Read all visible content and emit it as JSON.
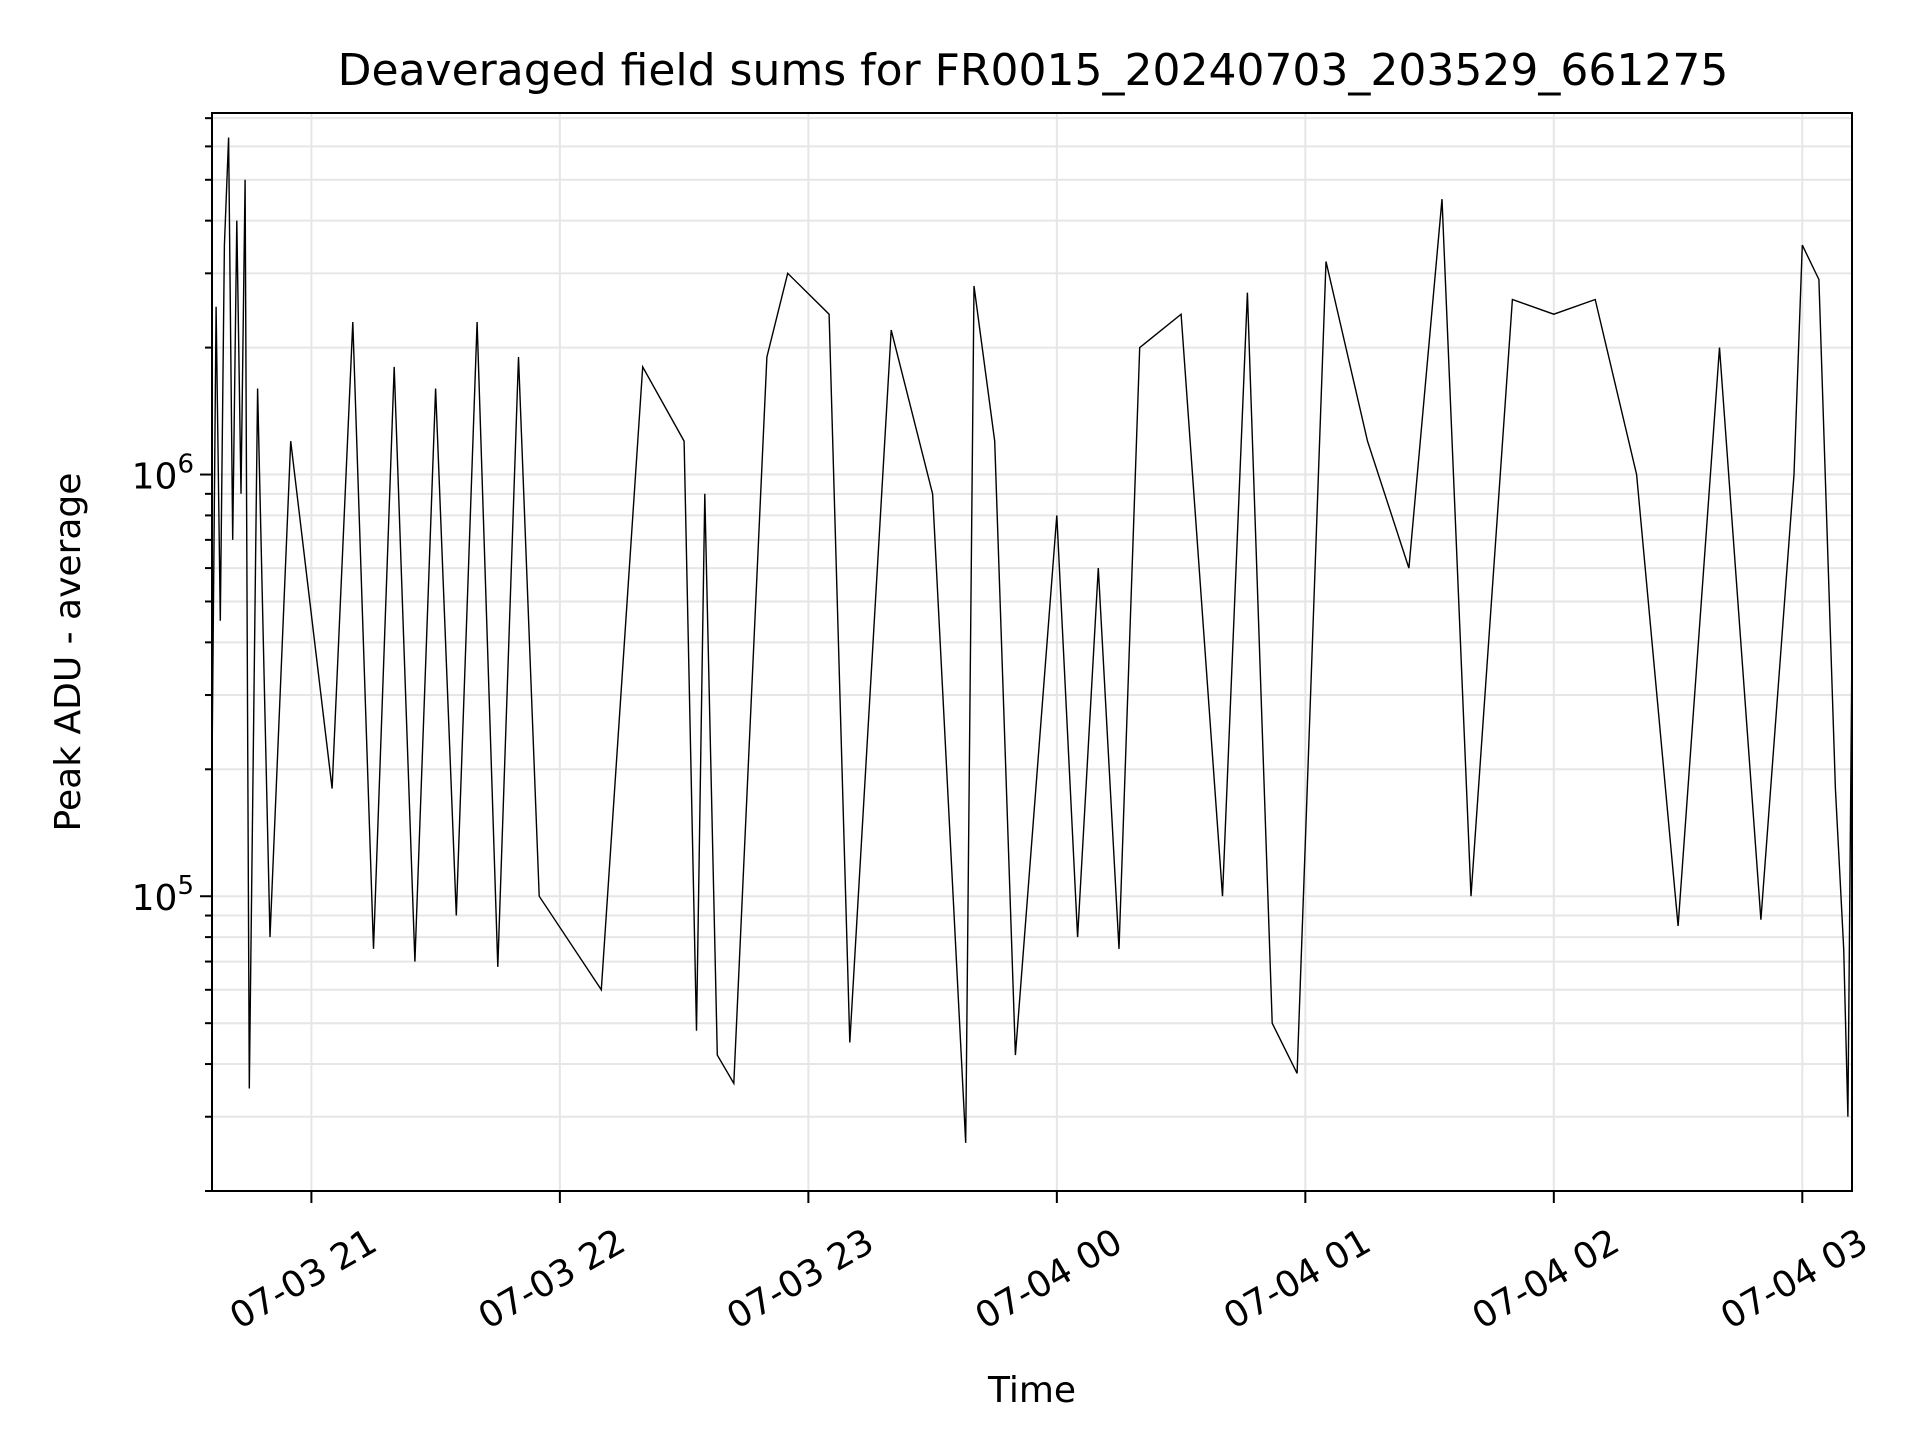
{
  "chart_data": {
    "type": "line",
    "title": "Deaveraged field sums for FR0015_20240703_203529_661275",
    "xlabel": "Time",
    "ylabel": "Peak ADU - average",
    "yscale": "log",
    "ylim": [
      20000,
      7200000
    ],
    "xlim": [
      "2024-07-03 20:36",
      "2024-07-04 03:12"
    ],
    "grid": true,
    "line_color": "#000000",
    "grid_color": "#e6e6e6",
    "x_ticks": [
      {
        "value": "2024-07-03 21:00",
        "label": "07-03 21"
      },
      {
        "value": "2024-07-03 22:00",
        "label": "07-03 22"
      },
      {
        "value": "2024-07-03 23:00",
        "label": "07-03 23"
      },
      {
        "value": "2024-07-04 00:00",
        "label": "07-04 00"
      },
      {
        "value": "2024-07-04 01:00",
        "label": "07-04 01"
      },
      {
        "value": "2024-07-04 02:00",
        "label": "07-04 02"
      },
      {
        "value": "2024-07-04 03:00",
        "label": "07-04 03"
      }
    ],
    "y_ticks": [
      {
        "value": 100000,
        "base": "10",
        "exp": "5"
      },
      {
        "value": 1000000,
        "base": "10",
        "exp": "6"
      }
    ],
    "series": [
      {
        "x": [
          "2024-07-03 20:36",
          "2024-07-03 20:37",
          "2024-07-03 20:38",
          "2024-07-03 20:39",
          "2024-07-03 20:40",
          "2024-07-03 20:41",
          "2024-07-03 20:42",
          "2024-07-03 20:43",
          "2024-07-03 20:44",
          "2024-07-03 20:45",
          "2024-07-03 20:47",
          "2024-07-03 20:50",
          "2024-07-03 20:55",
          "2024-07-03 21:05",
          "2024-07-03 21:10",
          "2024-07-03 21:15",
          "2024-07-03 21:20",
          "2024-07-03 21:25",
          "2024-07-03 21:30",
          "2024-07-03 21:35",
          "2024-07-03 21:40",
          "2024-07-03 21:45",
          "2024-07-03 21:50",
          "2024-07-03 21:55",
          "2024-07-03 22:10",
          "2024-07-03 22:20",
          "2024-07-03 22:30",
          "2024-07-03 22:33",
          "2024-07-03 22:35",
          "2024-07-03 22:38",
          "2024-07-03 22:42",
          "2024-07-03 22:50",
          "2024-07-03 22:55",
          "2024-07-03 23:05",
          "2024-07-03 23:10",
          "2024-07-03 23:20",
          "2024-07-03 23:30",
          "2024-07-03 23:38",
          "2024-07-03 23:40",
          "2024-07-03 23:45",
          "2024-07-03 23:50",
          "2024-07-04 00:00",
          "2024-07-04 00:05",
          "2024-07-04 00:10",
          "2024-07-04 00:15",
          "2024-07-04 00:20",
          "2024-07-04 00:30",
          "2024-07-04 00:40",
          "2024-07-04 00:46",
          "2024-07-04 00:52",
          "2024-07-04 00:58",
          "2024-07-04 01:05",
          "2024-07-04 01:15",
          "2024-07-04 01:25",
          "2024-07-04 01:33",
          "2024-07-04 01:40",
          "2024-07-04 01:50",
          "2024-07-04 02:00",
          "2024-07-04 02:10",
          "2024-07-04 02:20",
          "2024-07-04 02:30",
          "2024-07-04 02:40",
          "2024-07-04 02:50",
          "2024-07-04 02:58",
          "2024-07-04 03:00",
          "2024-07-04 03:04",
          "2024-07-04 03:08",
          "2024-07-04 03:10",
          "2024-07-04 03:11",
          "2024-07-04 03:12"
        ],
        "values": [
          200000,
          2500000,
          450000,
          3500000,
          6300000,
          700000,
          4000000,
          900000,
          5000000,
          35000,
          1600000,
          80000,
          1200000,
          180000,
          2300000,
          75000,
          1800000,
          70000,
          1600000,
          90000,
          2300000,
          68000,
          1900000,
          100000,
          60000,
          1800000,
          1200000,
          48000,
          900000,
          42000,
          36000,
          1900000,
          3000000,
          2400000,
          45000,
          2200000,
          900000,
          26000,
          2800000,
          1200000,
          42000,
          800000,
          80000,
          600000,
          75000,
          2000000,
          2400000,
          100000,
          2700000,
          50000,
          38000,
          3200000,
          1200000,
          600000,
          4500000,
          100000,
          2600000,
          2400000,
          2600000,
          1000000,
          85000,
          2000000,
          88000,
          1000000,
          3500000,
          2900000,
          180000,
          75000,
          30000,
          400000
        ]
      }
    ]
  }
}
